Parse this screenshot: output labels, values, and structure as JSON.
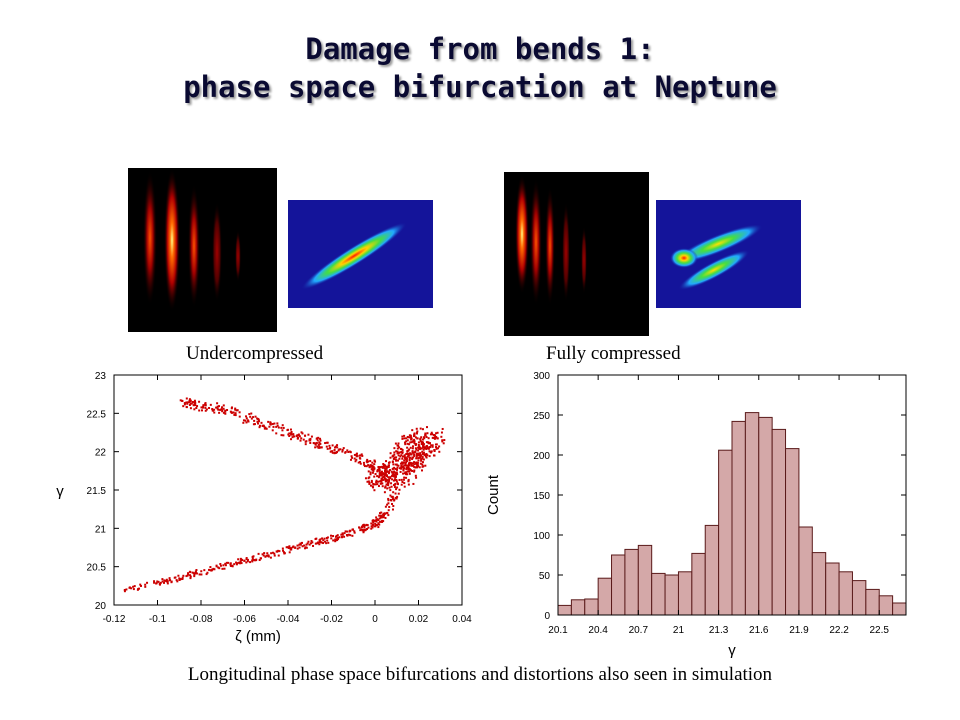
{
  "slide": {
    "title_line1": "Damage from bends 1:",
    "title_line2": "phase space bifurcation at Neptune",
    "label_under": "Undercompressed",
    "label_full": "Fully compressed",
    "bottom_caption": "Longitudinal phase space bifurcations and distortions also seen in simulation"
  },
  "colors": {
    "marker": "#cc0000",
    "bar_fill": "#d4a8a8",
    "bar_stroke": "#5a1a1a",
    "sim_bg": "#14149a",
    "title": "#0a0a32"
  },
  "chart_data": [
    {
      "type": "scatter",
      "xlabel": "ζ (mm)",
      "ylabel": "γ",
      "xlim": [
        -0.12,
        0.04
      ],
      "ylim": [
        20,
        23
      ],
      "xticks": [
        "-0.12",
        "-0.1",
        "-0.08",
        "-0.06",
        "-0.04",
        "-0.02",
        "0",
        "0.02",
        "0.04"
      ],
      "yticks": [
        "20",
        "20.5",
        "21",
        "21.5",
        "22",
        "22.5",
        "23"
      ],
      "upper_branch": [
        [
          -0.088,
          22.65
        ],
        [
          -0.08,
          22.6
        ],
        [
          -0.07,
          22.55
        ],
        [
          -0.06,
          22.45
        ],
        [
          -0.05,
          22.35
        ],
        [
          -0.04,
          22.25
        ],
        [
          -0.03,
          22.15
        ],
        [
          -0.02,
          22.05
        ],
        [
          -0.01,
          21.95
        ],
        [
          0,
          21.8
        ],
        [
          0.005,
          21.65
        ]
      ],
      "lower_branch": [
        [
          -0.115,
          20.2
        ],
        [
          -0.1,
          20.28
        ],
        [
          -0.09,
          20.35
        ],
        [
          -0.08,
          20.42
        ],
        [
          -0.07,
          20.5
        ],
        [
          -0.06,
          20.58
        ],
        [
          -0.05,
          20.65
        ],
        [
          -0.04,
          20.72
        ],
        [
          -0.03,
          20.8
        ],
        [
          -0.02,
          20.87
        ],
        [
          -0.01,
          20.95
        ],
        [
          0,
          21.05
        ],
        [
          0.005,
          21.2
        ],
        [
          0.01,
          21.5
        ]
      ],
      "core": [
        [
          0.002,
          21.6
        ],
        [
          0.01,
          21.7
        ],
        [
          0.015,
          21.9
        ],
        [
          0.02,
          22.05
        ],
        [
          0.025,
          22.2
        ]
      ],
      "show_grid": false
    },
    {
      "type": "bar",
      "xlabel": "γ",
      "ylabel": "Count",
      "xlim": [
        20.1,
        22.7
      ],
      "ylim": [
        0,
        300
      ],
      "xticks": [
        "20.1",
        "20.4",
        "20.7",
        "21",
        "21.3",
        "21.6",
        "21.9",
        "22.2",
        "22.5"
      ],
      "yticks": [
        "0",
        "50",
        "100",
        "150",
        "200",
        "250",
        "300"
      ],
      "bin_width": 0.1,
      "bin_starts": [
        20.1,
        20.2,
        20.3,
        20.4,
        20.5,
        20.6,
        20.7,
        20.8,
        20.9,
        21.0,
        21.1,
        21.2,
        21.3,
        21.4,
        21.5,
        21.6,
        21.7,
        21.8,
        21.9,
        22.0,
        22.1,
        22.2,
        22.3,
        22.4,
        22.5,
        22.6
      ],
      "values": [
        12,
        19,
        20,
        46,
        75,
        82,
        87,
        52,
        50,
        54,
        77,
        112,
        206,
        242,
        253,
        247,
        232,
        208,
        110,
        78,
        65,
        54,
        43,
        32,
        24,
        15
      ],
      "show_grid": false
    }
  ]
}
